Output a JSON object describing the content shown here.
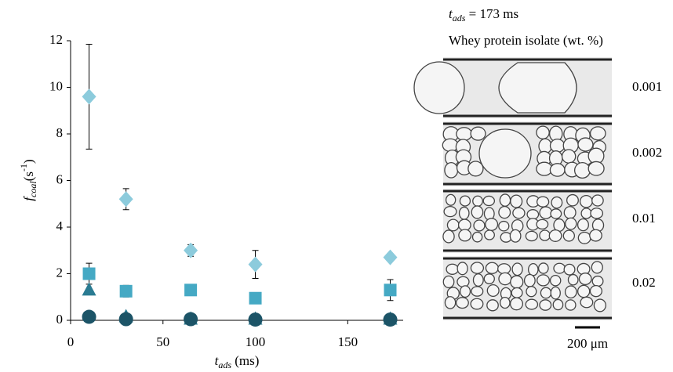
{
  "chart_data": {
    "type": "scatter",
    "x_label": {
      "symbol": "t",
      "sub": "ads",
      "unit": " (ms)"
    },
    "y_label": {
      "symbol": "f",
      "sub": "coal",
      "unit": "(s",
      "sup": "-1",
      "end": ")"
    },
    "x": [
      10,
      30,
      65,
      100,
      173
    ],
    "series": [
      {
        "color": "#8ccbdc",
        "marker": "diamond",
        "values": [
          9.6,
          5.2,
          3.0,
          2.4,
          2.7
        ],
        "errors": [
          2.25,
          0.45,
          0.25,
          0.6,
          0.1
        ]
      },
      {
        "color": "#45a9c4",
        "marker": "square",
        "values": [
          2.0,
          1.25,
          1.3,
          0.95,
          1.3
        ],
        "errors": [
          0.45,
          0.25,
          0.05,
          0.05,
          0.45
        ]
      },
      {
        "color": "#2a7b92",
        "marker": "triangle",
        "values": [
          1.3,
          0.15,
          0.05,
          0.05,
          0.05
        ]
      },
      {
        "color": "#1c5467",
        "marker": "circle",
        "values": [
          0.15,
          0.05,
          0.05,
          0.03,
          0.03
        ]
      }
    ],
    "xlim": [
      0,
      180
    ],
    "xticks": [
      0,
      50,
      100,
      150
    ],
    "ylim": [
      0,
      12
    ],
    "yticks": [
      0,
      2,
      4,
      6,
      8,
      10,
      12
    ]
  },
  "figure_panel": {
    "title": {
      "symbol": "t",
      "sub": "ads",
      "rest": " = 173 ms"
    },
    "subtitle": "Whey protein isolate (wt. %)",
    "labels": [
      "0.001",
      "0.002",
      "0.01",
      "0.02"
    ],
    "scale_bar": "200 μm"
  }
}
